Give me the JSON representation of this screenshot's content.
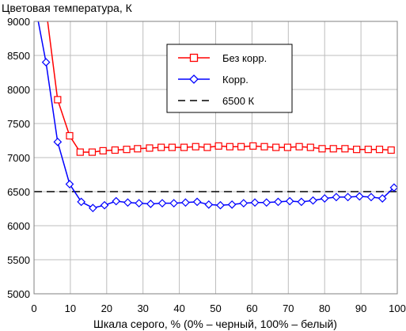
{
  "chart_data": {
    "type": "line",
    "title": "",
    "ylabel": "Цветовая температура, К",
    "xlabel": "Шкала серого, % (0% – черный, 100% – белый)",
    "xlim": [
      0,
      100
    ],
    "ylim": [
      5000,
      9000
    ],
    "xticks": [
      0,
      10,
      20,
      30,
      40,
      50,
      60,
      70,
      80,
      90,
      100
    ],
    "yticks": [
      5000,
      5500,
      6000,
      6500,
      7000,
      7500,
      8000,
      8500,
      9000
    ],
    "grid": true,
    "legend_placement": "top-center",
    "series": [
      {
        "name": "Без корр.",
        "color": "#ff0000",
        "marker": "square",
        "x": [
          3.5,
          6.5,
          9.8,
          12.7,
          16,
          19,
          22.3,
          25.5,
          28.5,
          31.8,
          35,
          38,
          41.3,
          44.5,
          47.7,
          50.8,
          53.9,
          57,
          60.3,
          63.4,
          66.6,
          69.8,
          73,
          76.1,
          79.3,
          82.4,
          85.6,
          88.8,
          92,
          95.1,
          98.3
        ],
        "y": [
          9100,
          7850,
          7320,
          7080,
          7080,
          7100,
          7110,
          7120,
          7130,
          7140,
          7150,
          7150,
          7150,
          7160,
          7150,
          7170,
          7160,
          7160,
          7170,
          7160,
          7150,
          7150,
          7160,
          7150,
          7130,
          7130,
          7130,
          7120,
          7120,
          7120,
          7110
        ],
        "trend": [
          [
            3.5,
            9100
          ],
          [
            6.5,
            7850
          ],
          [
            9.8,
            7320
          ],
          [
            12.7,
            7080
          ],
          [
            16,
            7080
          ],
          [
            19,
            7100
          ],
          [
            22.3,
            7110
          ],
          [
            25.5,
            7120
          ],
          [
            28.5,
            7130
          ],
          [
            31.8,
            7140
          ],
          [
            35,
            7150
          ],
          [
            38,
            7150
          ],
          [
            41.3,
            7150
          ],
          [
            44.5,
            7160
          ],
          [
            47.7,
            7150
          ],
          [
            50.8,
            7170
          ],
          [
            53.9,
            7160
          ],
          [
            57,
            7160
          ],
          [
            60.3,
            7170
          ],
          [
            63.4,
            7160
          ],
          [
            66.6,
            7150
          ],
          [
            69.8,
            7150
          ],
          [
            73,
            7160
          ],
          [
            76.1,
            7150
          ],
          [
            79.3,
            7130
          ],
          [
            82.4,
            7130
          ],
          [
            85.6,
            7130
          ],
          [
            88.8,
            7120
          ],
          [
            92,
            7120
          ],
          [
            95.1,
            7120
          ],
          [
            98.3,
            7110
          ]
        ]
      },
      {
        "name": "Корр.",
        "color": "#0000ff",
        "marker": "diamond",
        "x": [
          3.3,
          6.5,
          9.8,
          13,
          16.2,
          19.4,
          22.6,
          25.8,
          28.9,
          32.1,
          35.3,
          38.5,
          41.7,
          44.9,
          48.1,
          51.3,
          54.5,
          57.7,
          60.8,
          64,
          67.2,
          70.4,
          73.6,
          76.8,
          80,
          83.2,
          86.4,
          89.6,
          92.8,
          95.9,
          99.1
        ],
        "y": [
          8400,
          7230,
          6610,
          6350,
          6260,
          6300,
          6360,
          6340,
          6330,
          6320,
          6330,
          6330,
          6340,
          6350,
          6310,
          6300,
          6310,
          6330,
          6340,
          6340,
          6350,
          6360,
          6350,
          6370,
          6400,
          6420,
          6420,
          6430,
          6420,
          6400,
          6560
        ],
        "trend": [
          [
            0.8,
            9100
          ],
          [
            3.3,
            8400
          ],
          [
            6.5,
            7230
          ],
          [
            9.8,
            6610
          ],
          [
            13,
            6350
          ],
          [
            16.2,
            6260
          ],
          [
            19.4,
            6300
          ],
          [
            22.6,
            6360
          ],
          [
            25.8,
            6340
          ],
          [
            28.9,
            6330
          ],
          [
            32.1,
            6320
          ],
          [
            35.3,
            6330
          ],
          [
            38.5,
            6330
          ],
          [
            41.7,
            6340
          ],
          [
            44.9,
            6350
          ],
          [
            48.1,
            6310
          ],
          [
            51.3,
            6300
          ],
          [
            54.5,
            6310
          ],
          [
            57.7,
            6330
          ],
          [
            60.8,
            6340
          ],
          [
            64,
            6340
          ],
          [
            67.2,
            6350
          ],
          [
            70.4,
            6360
          ],
          [
            73.6,
            6350
          ],
          [
            76.8,
            6370
          ],
          [
            80,
            6400
          ],
          [
            83.2,
            6420
          ],
          [
            86.4,
            6420
          ],
          [
            89.6,
            6430
          ],
          [
            92.8,
            6420
          ],
          [
            95.9,
            6400
          ],
          [
            99.1,
            6560
          ]
        ]
      },
      {
        "name": "6500 К",
        "color": "#000000",
        "style": "dashed",
        "x": [
          0,
          100
        ],
        "y": [
          6500,
          6500
        ]
      }
    ]
  }
}
